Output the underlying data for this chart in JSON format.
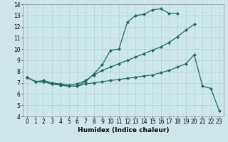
{
  "line1_x": [
    0,
    1,
    2,
    3,
    4,
    5,
    6,
    7,
    8,
    9,
    10,
    11,
    12,
    13,
    14,
    15,
    16,
    17,
    18
  ],
  "line1_y": [
    7.5,
    7.1,
    7.1,
    6.9,
    6.8,
    6.7,
    6.7,
    7.1,
    7.8,
    8.6,
    9.9,
    10.0,
    12.4,
    13.0,
    13.1,
    13.5,
    13.6,
    13.2,
    13.2
  ],
  "line2_x": [
    0,
    1,
    2,
    3,
    4,
    5,
    6,
    7,
    8,
    9,
    10,
    11,
    12,
    13,
    14,
    15,
    16,
    17,
    18,
    19,
    20
  ],
  "line2_y": [
    7.5,
    7.1,
    7.2,
    7.0,
    6.9,
    6.8,
    6.9,
    7.2,
    7.7,
    8.1,
    8.4,
    8.7,
    9.0,
    9.3,
    9.6,
    9.9,
    10.2,
    10.6,
    11.1,
    11.7,
    12.2
  ],
  "line3_x": [
    0,
    1,
    2,
    3,
    4,
    5,
    6,
    7,
    8,
    9,
    10,
    11,
    12,
    13,
    14,
    15,
    16,
    17,
    18,
    19,
    20,
    21,
    22,
    23
  ],
  "line3_y": [
    7.5,
    7.1,
    7.1,
    6.9,
    6.8,
    6.7,
    6.7,
    6.9,
    7.0,
    7.1,
    7.2,
    7.3,
    7.4,
    7.5,
    7.6,
    7.7,
    7.9,
    8.1,
    8.4,
    8.7,
    9.5,
    6.7,
    6.5,
    4.5
  ],
  "color": "#1a6b5a",
  "bg_color": "#cce8e8",
  "grid_color": "#aacccc",
  "xlabel": "Humidex (Indice chaleur)",
  "ylim": [
    4,
    14
  ],
  "xlim": [
    -0.5,
    23.5
  ],
  "yticks": [
    4,
    5,
    6,
    7,
    8,
    9,
    10,
    11,
    12,
    13,
    14
  ],
  "xticks": [
    0,
    1,
    2,
    3,
    4,
    5,
    6,
    7,
    8,
    9,
    10,
    11,
    12,
    13,
    14,
    15,
    16,
    17,
    18,
    19,
    20,
    21,
    22,
    23
  ],
  "xlabel_fontsize": 6.5,
  "tick_fontsize": 5.5,
  "marker_size": 2.5,
  "linewidth": 0.9
}
